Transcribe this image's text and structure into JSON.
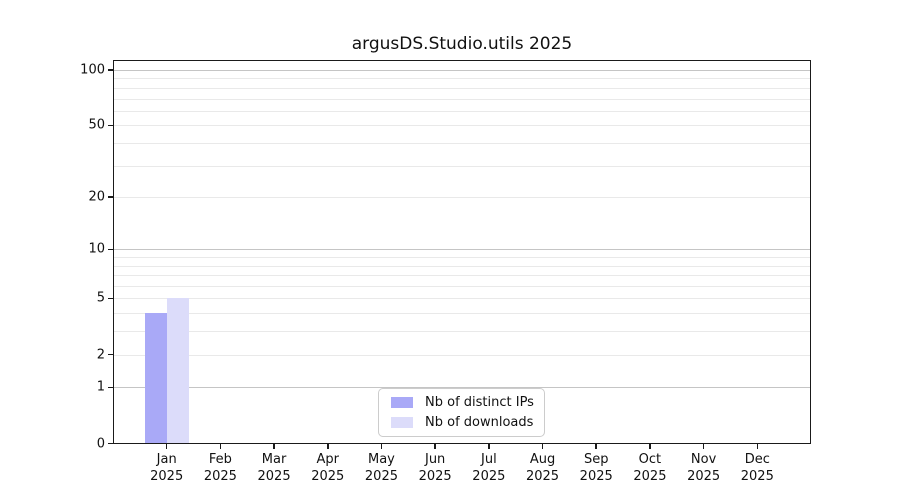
{
  "chart_data": {
    "type": "bar",
    "title": "argusDS.Studio.utils 2025",
    "x": {
      "months": [
        "Jan",
        "Feb",
        "Mar",
        "Apr",
        "May",
        "Jun",
        "Jul",
        "Aug",
        "Sep",
        "Oct",
        "Nov",
        "Dec"
      ],
      "year": "2025"
    },
    "series": [
      {
        "name": "Nb of distinct IPs",
        "color": "#a9a9f7",
        "values": [
          4,
          0,
          0,
          0,
          0,
          0,
          0,
          0,
          0,
          0,
          0,
          0
        ]
      },
      {
        "name": "Nb of downloads",
        "color": "#dcdcfa",
        "values": [
          5,
          0,
          0,
          0,
          0,
          0,
          0,
          0,
          0,
          0,
          0,
          0
        ]
      }
    ],
    "y_axis": {
      "scale": "log10(1+value)",
      "tick_values": [
        0,
        1,
        2,
        5,
        10,
        20,
        50,
        100
      ],
      "major_gridlines": [
        1,
        10,
        100
      ],
      "minor_gridlines": [
        2,
        3,
        4,
        5,
        6,
        7,
        8,
        9,
        20,
        30,
        40,
        50,
        60,
        70,
        80,
        90
      ],
      "range_min": 0,
      "range_max": 113
    },
    "legend": {
      "position": "bottom-center",
      "entries": [
        "Nb of distinct IPs",
        "Nb of downloads"
      ]
    },
    "colors": {
      "axis": "#1a1a1a",
      "major_grid": "#c5c5c5",
      "minor_grid": "#e9e9e9",
      "background": "#ffffff",
      "text": "#111111"
    }
  }
}
